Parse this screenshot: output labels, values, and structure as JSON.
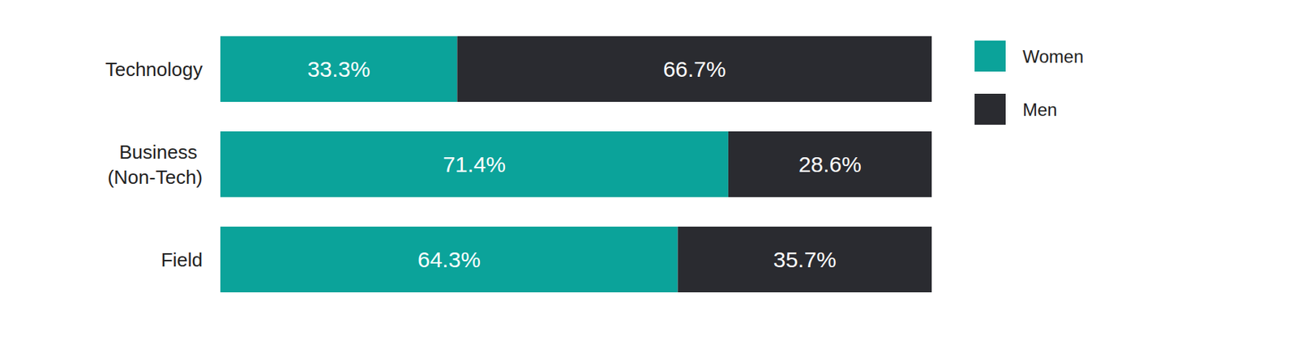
{
  "chart_data": {
    "type": "bar",
    "orientation": "horizontal",
    "stacked": true,
    "data_labels": true,
    "tick_labels": "y",
    "categories": [
      "Technology",
      "Business (Non-Tech)",
      "Field"
    ],
    "xlim": [
      0,
      100
    ],
    "legend": "right",
    "series": [
      {
        "name": "Women",
        "color": "#0ba39a",
        "values": [
          33.3,
          71.4,
          64.3
        ],
        "value_labels": [
          "33.3%",
          "71.4%",
          "64.3%"
        ]
      },
      {
        "name": "Men",
        "color": "#2a2b30",
        "values": [
          66.7,
          28.6,
          35.7
        ],
        "value_labels": [
          "66.7%",
          "28.6%",
          "35.7%"
        ]
      }
    ]
  }
}
